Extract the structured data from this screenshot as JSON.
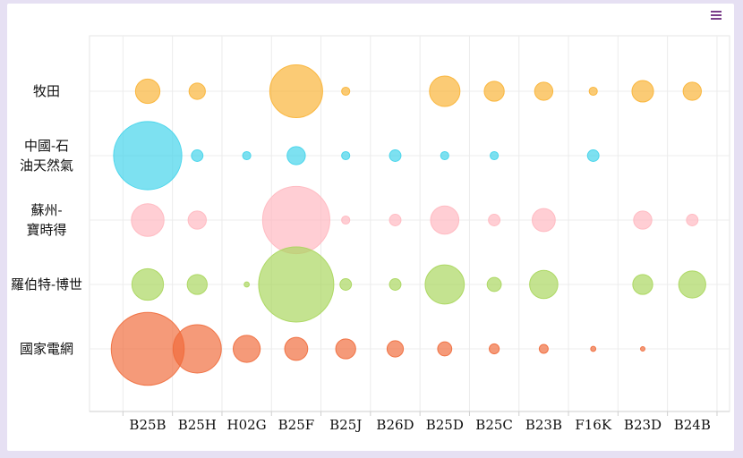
{
  "chart_data": {
    "type": "bubble",
    "categories": [
      "B25B",
      "B25H",
      "H02G",
      "B25F",
      "B25J",
      "B26D",
      "B25D",
      "B25C",
      "B23B",
      "F16K",
      "B23D",
      "B24B"
    ],
    "series": [
      {
        "name": "牧田",
        "label_lines": [
          "牧田"
        ],
        "color": "#f9b233",
        "values": [
          9,
          4,
          0,
          42,
          1,
          0,
          14,
          6,
          5,
          1,
          7,
          5
        ]
      },
      {
        "name": "中國-石油天然氣",
        "label_lines": [
          "中國-石",
          "油天然氣"
        ],
        "color": "#3fd3ea",
        "values": [
          70,
          2,
          1,
          5,
          1,
          2,
          1,
          1,
          0,
          2,
          0,
          0
        ]
      },
      {
        "name": "蘇州-寶時得",
        "label_lines": [
          "蘇州-",
          "寶時得"
        ],
        "color": "#ffb7bf",
        "values": [
          16,
          5,
          0,
          68,
          1,
          2,
          12,
          2,
          8,
          0,
          5,
          2
        ]
      },
      {
        "name": "羅伯特-博世",
        "label_lines": [
          "羅伯特-博世"
        ],
        "color": "#a8d65b",
        "values": [
          15,
          6,
          0.4,
          85,
          2,
          2,
          23,
          3,
          12,
          0,
          6,
          11
        ]
      },
      {
        "name": "國家電網",
        "label_lines": [
          "國家電網"
        ],
        "color": "#f06a3a",
        "values": [
          80,
          35,
          11,
          8,
          6,
          4,
          3,
          1.5,
          1.2,
          0.4,
          0.3,
          0
        ]
      }
    ],
    "grid": true,
    "legend": "none"
  },
  "ui": {
    "menu_icon": "hamburger-menu-icon"
  }
}
